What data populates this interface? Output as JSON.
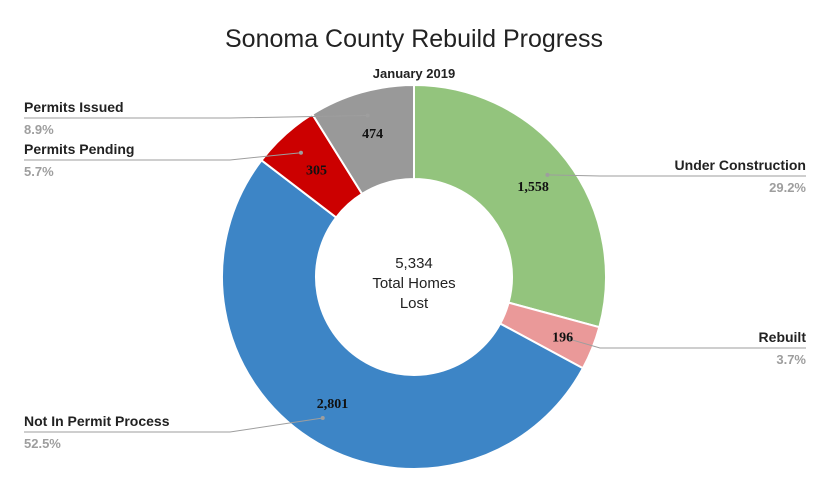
{
  "chart_data": {
    "type": "pie",
    "title": "Sonoma County Rebuild Progress",
    "subtitle": "January 2019",
    "center_text": [
      "5,334",
      "Total Homes",
      "Lost"
    ],
    "slices": [
      {
        "label": "Under Construction",
        "value": 1558,
        "value_label": "1,558",
        "percent_label": "29.2%",
        "color": "#93c47d"
      },
      {
        "label": "Rebuilt",
        "value": 196,
        "value_label": "196",
        "percent_label": "3.7%",
        "color": "#ea9999"
      },
      {
        "label": "Not In Permit Process",
        "value": 2801,
        "value_label": "2,801",
        "percent_label": "52.5%",
        "color": "#3d85c6"
      },
      {
        "label": "Permits Pending",
        "value": 305,
        "value_label": "305",
        "percent_label": "5.7%",
        "color": "#cc0000"
      },
      {
        "label": "Permits Issued",
        "value": 474,
        "value_label": "474",
        "percent_label": "8.9%",
        "color": "#999999"
      }
    ],
    "legend": "none"
  }
}
